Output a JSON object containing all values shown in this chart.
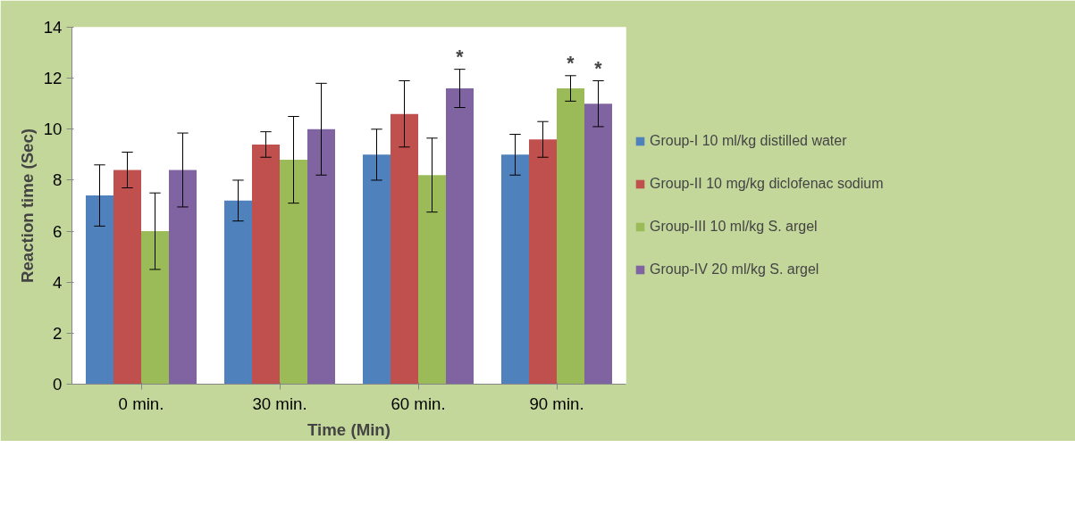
{
  "chart_data": {
    "type": "bar",
    "xlabel": "Time (Min)",
    "ylabel": "Reaction time (Sec)",
    "categories": [
      "0 min.",
      "30 min.",
      "60 min.",
      "90 min."
    ],
    "series": [
      {
        "name": "Group-I 10 ml/kg distilled water",
        "color": "#4f81bd",
        "values": [
          7.4,
          7.2,
          9.0,
          9.0
        ],
        "errors": [
          1.2,
          0.8,
          1.0,
          0.8
        ]
      },
      {
        "name": "Group-II 10 mg/kg diclofenac sodium",
        "color": "#c0504d",
        "values": [
          8.4,
          9.4,
          10.6,
          9.6
        ],
        "errors": [
          0.7,
          0.5,
          1.3,
          0.7
        ]
      },
      {
        "name": "Group-III 10 ml/kg S. argel",
        "color": "#9bbb59",
        "values": [
          6.0,
          8.8,
          8.2,
          11.6
        ],
        "errors": [
          1.5,
          1.7,
          1.45,
          0.5
        ],
        "value_labels": [
          null,
          null,
          null,
          "*"
        ]
      },
      {
        "name": "Group-IV 20 ml/kg S. argel",
        "color": "#8064a2",
        "values": [
          8.4,
          10.0,
          11.6,
          11.0
        ],
        "errors": [
          1.45,
          1.8,
          0.75,
          0.9
        ],
        "value_labels": [
          null,
          null,
          "*",
          "*"
        ]
      }
    ],
    "ylim": [
      0,
      14
    ],
    "yticks": [
      0,
      2,
      4,
      6,
      8,
      10,
      12,
      14
    ],
    "grid": false,
    "legend": "right"
  }
}
